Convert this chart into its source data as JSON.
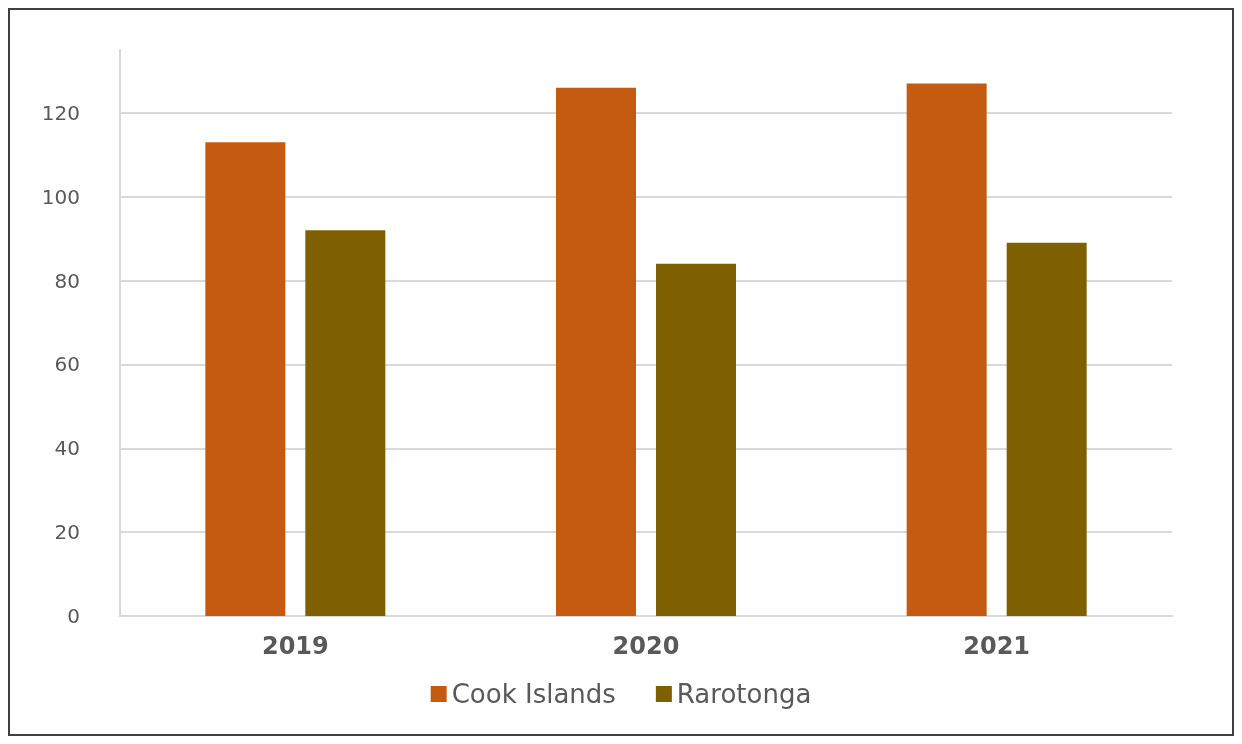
{
  "chart_data": {
    "type": "bar",
    "categories": [
      "2019",
      "2020",
      "2021"
    ],
    "series": [
      {
        "name": "Cook Islands",
        "color": "#c55a11",
        "values": [
          113,
          126,
          127
        ]
      },
      {
        "name": "Rarotonga",
        "color": "#7f6000",
        "values": [
          92,
          84,
          89
        ]
      }
    ],
    "ylim": [
      0,
      135
    ],
    "yticks": [
      0,
      20,
      40,
      60,
      80,
      100,
      120
    ],
    "grid": "y",
    "legend": "bottom"
  }
}
